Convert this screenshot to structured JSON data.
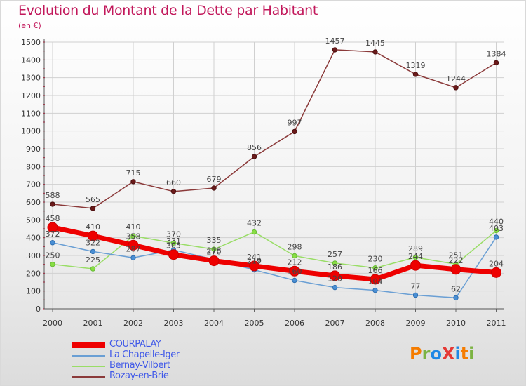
{
  "header": {
    "title": "Evolution du Montant de la Dette par Habitant",
    "subtitle": "(en €)"
  },
  "logo": {
    "text": "ProXiti",
    "letters": [
      "P",
      "r",
      "o",
      "X",
      "i",
      "t",
      "i"
    ],
    "colors": [
      "#f57c00",
      "#7cb342",
      "#1e88e5",
      "#e53935",
      "#1e88e5",
      "#f57c00",
      "#7cb342"
    ]
  },
  "chart_data": {
    "type": "line",
    "title": "Evolution du Montant de la Dette par Habitant",
    "subtitle": "(en €)",
    "xlabel": "",
    "ylabel": "",
    "x": [
      "2000",
      "2001",
      "2002",
      "2003",
      "2004",
      "2005",
      "2006",
      "2007",
      "2008",
      "2009",
      "2010",
      "2011"
    ],
    "ylim": [
      0,
      1500
    ],
    "yticks": [
      0,
      100,
      200,
      300,
      400,
      500,
      600,
      700,
      800,
      900,
      1000,
      1100,
      1200,
      1300,
      1400,
      1500
    ],
    "grid": true,
    "legend_position": "bottom-left",
    "series": [
      {
        "name": "COURPALAY",
        "color": "#ee0000",
        "values": [
          458,
          410,
          358,
          305,
          270,
          241,
          212,
          186,
          166,
          244,
          222,
          204
        ],
        "labels": [
          "458",
          "410",
          "358",
          "305",
          "270",
          "241",
          "212",
          "186",
          "166",
          "244",
          "222",
          "204"
        ]
      },
      {
        "name": "La Chapelle-Iger",
        "color": "#6a9fd4",
        "values": [
          372,
          322,
          287,
          331,
          278,
          219,
          160,
          120,
          104,
          77,
          62,
          403
        ],
        "labels": [
          "372",
          "322",
          "287",
          "331",
          "278",
          "219",
          "160",
          "120",
          "104",
          "77",
          "62",
          "403"
        ]
      },
      {
        "name": "Bernay-Vilbert",
        "color": "#99dd66",
        "values": [
          250,
          225,
          410,
          370,
          335,
          432,
          298,
          257,
          230,
          289,
          251,
          440
        ],
        "labels": [
          "250",
          "225",
          "410",
          "370",
          "335",
          "432",
          "298",
          "257",
          "230",
          "289",
          "251",
          "440"
        ]
      },
      {
        "name": "Rozay-en-Brie",
        "color": "#8b3a3a",
        "values": [
          588,
          565,
          715,
          660,
          679,
          856,
          997,
          1457,
          1445,
          1319,
          1244,
          1384
        ],
        "labels": [
          "588",
          "565",
          "715",
          "660",
          "679",
          "856",
          "997",
          "1457",
          "1445",
          "1319",
          "1244",
          "1384"
        ]
      }
    ]
  }
}
